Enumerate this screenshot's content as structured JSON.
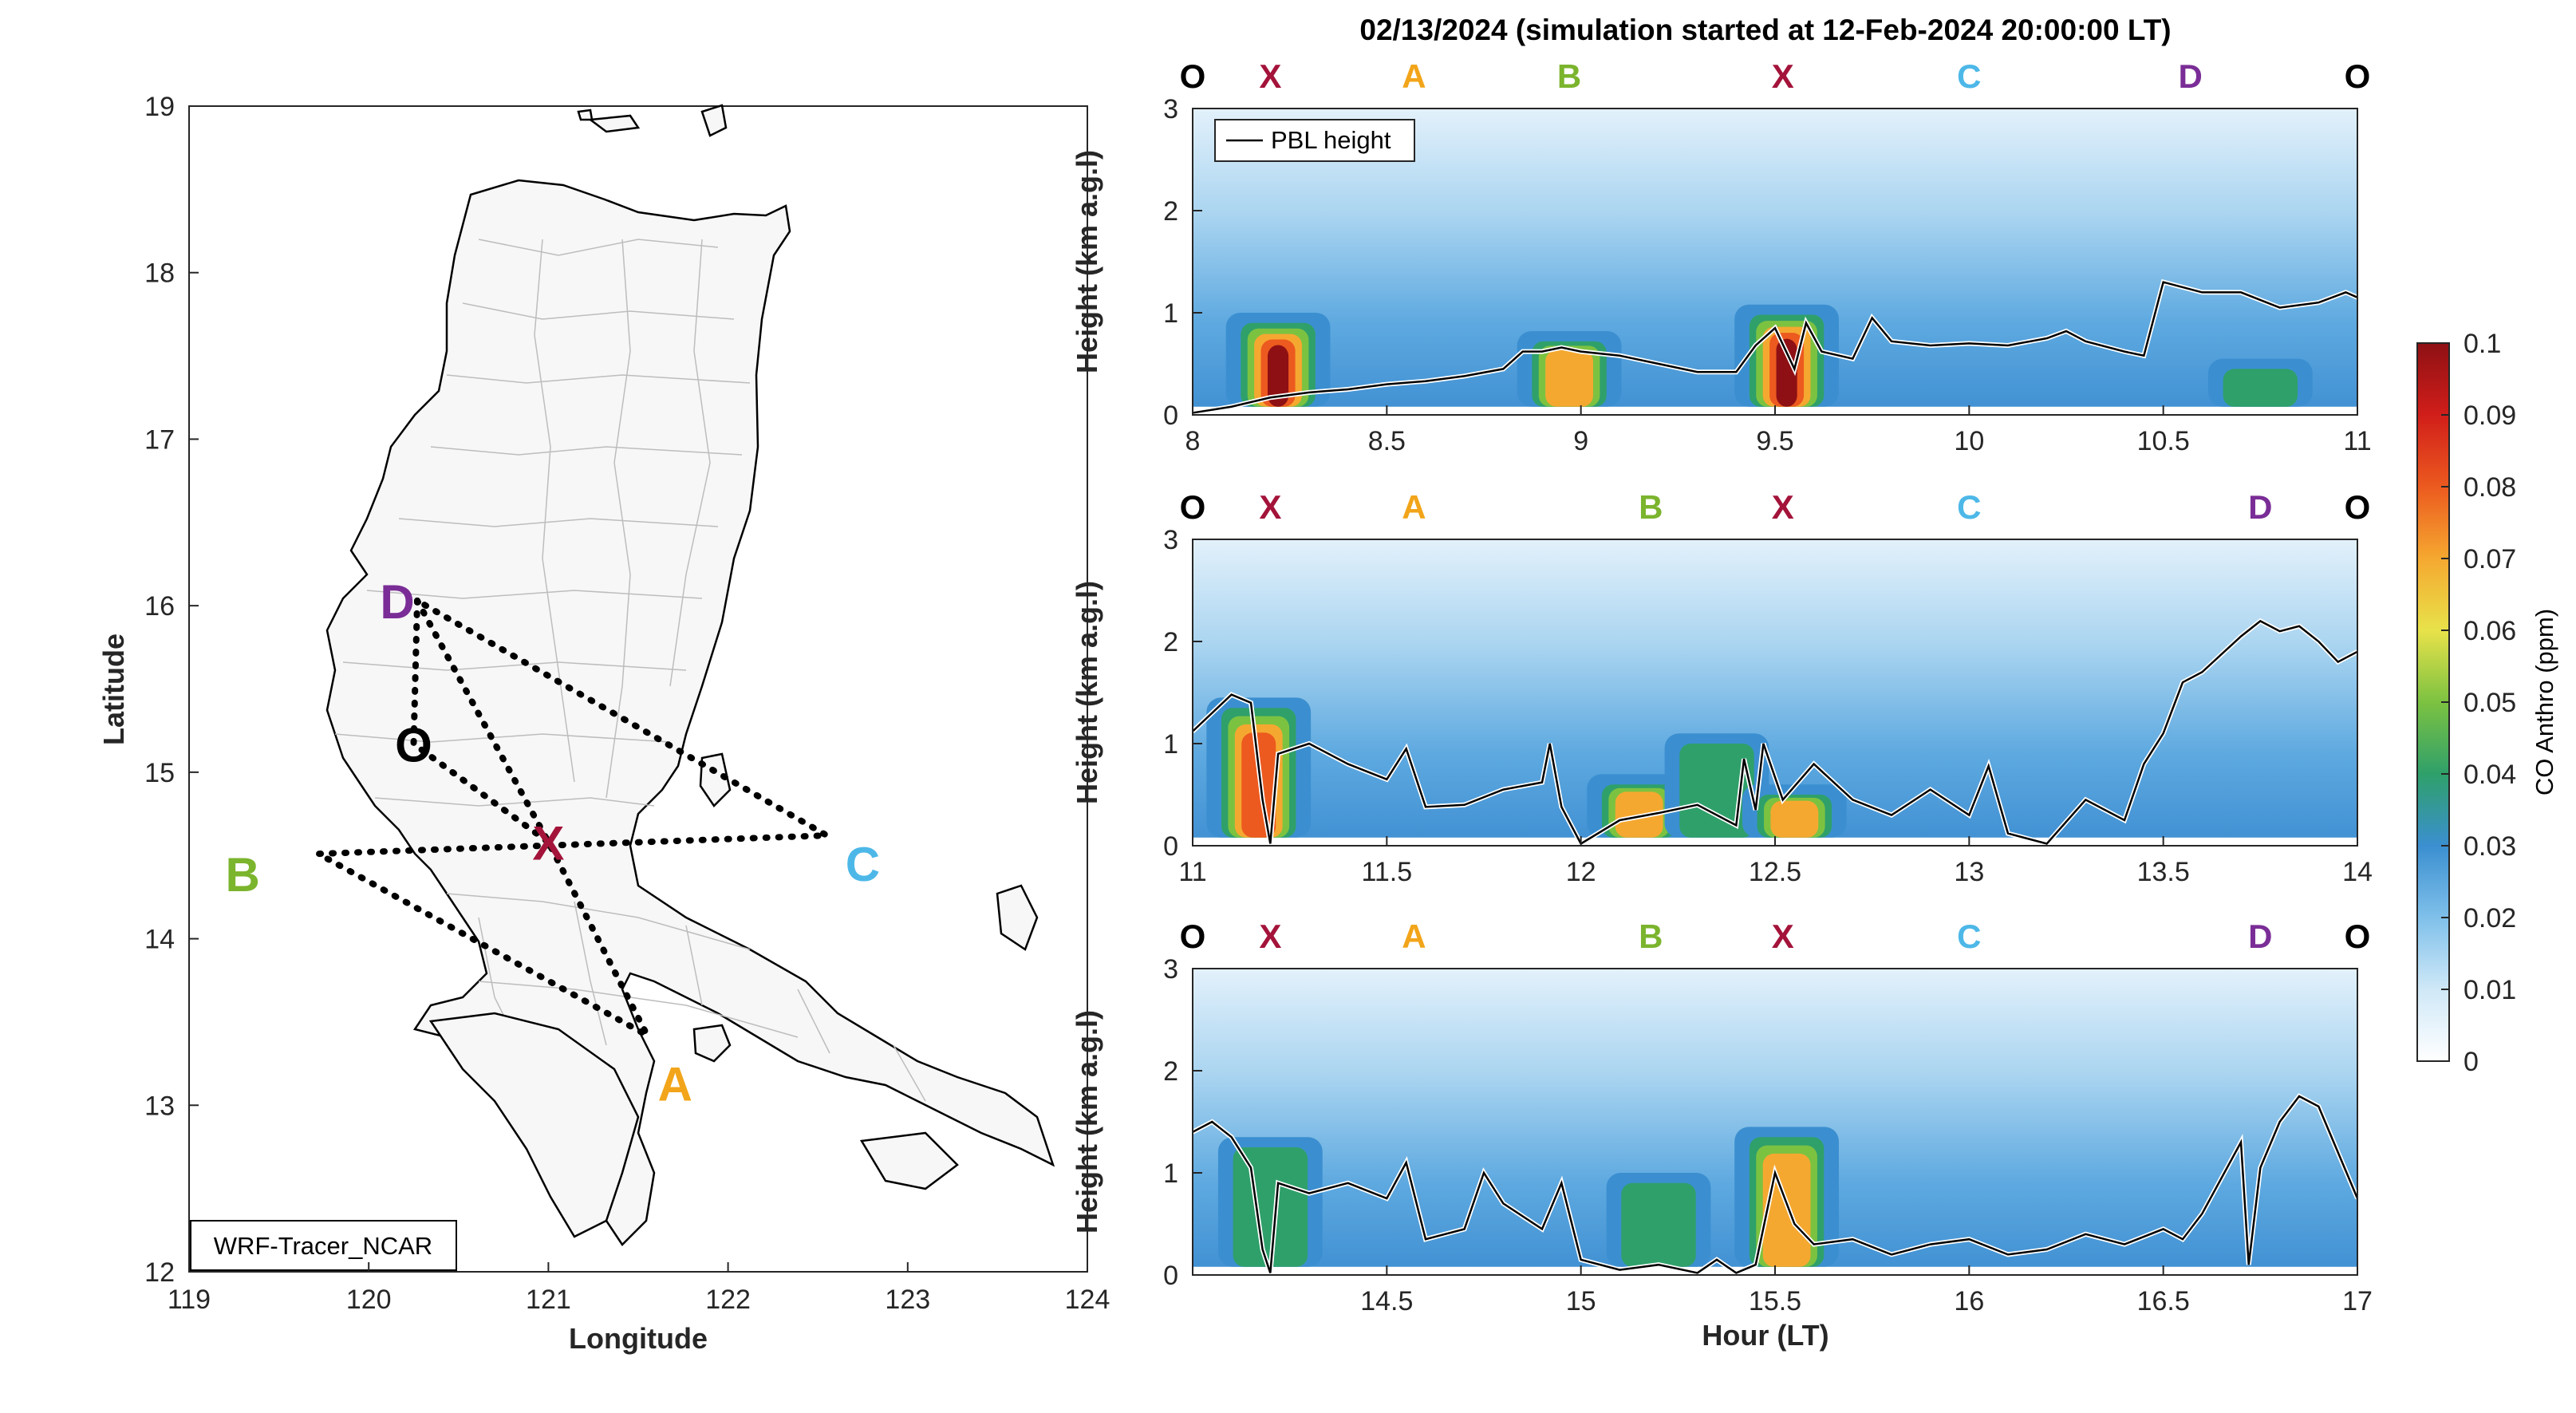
{
  "title": "02/13/2024 (simulation started at 12-Feb-2024 20:00:00 LT)",
  "colors": {
    "O": "#000000",
    "X": "#a3133a",
    "A": "#f2a51a",
    "B": "#7bb42d",
    "C": "#4db8e8",
    "D": "#7a2d96",
    "route": "#000000",
    "pbl": "#000000"
  },
  "map": {
    "xlabel": "Longitude",
    "ylabel": "Latitude",
    "xticks": [
      "119",
      "120",
      "121",
      "122",
      "123",
      "124"
    ],
    "yticks": [
      "12",
      "13",
      "14",
      "15",
      "16",
      "17",
      "18",
      "19"
    ],
    "xlim": [
      119,
      124
    ],
    "ylim": [
      12,
      19
    ],
    "model_label": "WRF-Tracer_NCAR",
    "points": [
      {
        "name": "O",
        "lon": 120.25,
        "lat": 15.17
      },
      {
        "name": "X",
        "lon": 121.0,
        "lat": 14.58
      },
      {
        "name": "A",
        "lon": 121.55,
        "lat": 13.42
      },
      {
        "name": "B",
        "lon": 119.72,
        "lat": 14.51
      },
      {
        "name": "C",
        "lon": 122.55,
        "lat": 14.62
      },
      {
        "name": "D",
        "lon": 120.27,
        "lat": 16.03
      }
    ],
    "route": [
      "D",
      "X",
      "A",
      "B",
      "C",
      "D"
    ]
  },
  "sequence": [
    "O",
    "X",
    "A",
    "B",
    "X",
    "C",
    "D",
    "O"
  ],
  "chart_data": {
    "type": "heatmap",
    "colorbar": {
      "label": "CO Anthro (ppm)",
      "ticks": [
        "0",
        "0.01",
        "0.02",
        "0.03",
        "0.04",
        "0.05",
        "0.06",
        "0.07",
        "0.08",
        "0.09",
        "0.1"
      ],
      "range": [
        0,
        0.1
      ]
    },
    "legend": "PBL height",
    "xlabel": "Hour (LT)",
    "ylabel": "Height (km a.g.l)",
    "panels": [
      {
        "xlim": [
          8,
          11
        ],
        "ylim": [
          0,
          3
        ],
        "xticks": [
          "8",
          "8.5",
          "9",
          "9.5",
          "10",
          "10.5",
          "11"
        ],
        "yticks": [
          "0",
          "1",
          "2",
          "3"
        ],
        "sequence_hours": [
          8.0,
          8.2,
          8.57,
          8.97,
          9.52,
          10.0,
          10.57,
          11.0
        ],
        "pbl_height": [
          [
            8.0,
            0.02
          ],
          [
            8.1,
            0.08
          ],
          [
            8.2,
            0.17
          ],
          [
            8.3,
            0.22
          ],
          [
            8.4,
            0.25
          ],
          [
            8.5,
            0.3
          ],
          [
            8.6,
            0.33
          ],
          [
            8.7,
            0.38
          ],
          [
            8.8,
            0.45
          ],
          [
            8.85,
            0.62
          ],
          [
            8.9,
            0.62
          ],
          [
            8.95,
            0.66
          ],
          [
            9.0,
            0.62
          ],
          [
            9.1,
            0.58
          ],
          [
            9.2,
            0.5
          ],
          [
            9.3,
            0.42
          ],
          [
            9.4,
            0.42
          ],
          [
            9.45,
            0.68
          ],
          [
            9.5,
            0.85
          ],
          [
            9.55,
            0.45
          ],
          [
            9.58,
            0.9
          ],
          [
            9.62,
            0.62
          ],
          [
            9.7,
            0.55
          ],
          [
            9.75,
            0.95
          ],
          [
            9.8,
            0.72
          ],
          [
            9.9,
            0.68
          ],
          [
            10.0,
            0.7
          ],
          [
            10.1,
            0.68
          ],
          [
            10.2,
            0.75
          ],
          [
            10.25,
            0.82
          ],
          [
            10.3,
            0.72
          ],
          [
            10.4,
            0.62
          ],
          [
            10.45,
            0.58
          ],
          [
            10.5,
            1.3
          ],
          [
            10.6,
            1.2
          ],
          [
            10.7,
            1.2
          ],
          [
            10.8,
            1.05
          ],
          [
            10.9,
            1.1
          ],
          [
            10.97,
            1.2
          ],
          [
            11.0,
            1.15
          ]
        ],
        "co_plumes": [
          {
            "hour": 8.22,
            "top_km": 0.9,
            "peak_ppm": 0.1
          },
          {
            "hour": 8.97,
            "top_km": 0.72,
            "peak_ppm": 0.07
          },
          {
            "hour": 9.53,
            "top_km": 0.98,
            "peak_ppm": 0.1
          },
          {
            "hour": 10.75,
            "top_km": 0.45,
            "peak_ppm": 0.04
          }
        ]
      },
      {
        "xlim": [
          11,
          14
        ],
        "ylim": [
          0,
          3
        ],
        "xticks": [
          "11",
          "11.5",
          "12",
          "12.5",
          "13",
          "13.5",
          "14"
        ],
        "yticks": [
          "0",
          "1",
          "2",
          "3"
        ],
        "sequence_hours": [
          11.0,
          11.2,
          11.57,
          12.18,
          12.52,
          13.0,
          13.75,
          14.0
        ],
        "pbl_height": [
          [
            11.0,
            1.12
          ],
          [
            11.05,
            1.3
          ],
          [
            11.1,
            1.48
          ],
          [
            11.15,
            1.4
          ],
          [
            11.18,
            0.45
          ],
          [
            11.2,
            0.02
          ],
          [
            11.22,
            0.9
          ],
          [
            11.3,
            1.0
          ],
          [
            11.4,
            0.8
          ],
          [
            11.5,
            0.65
          ],
          [
            11.55,
            0.95
          ],
          [
            11.6,
            0.38
          ],
          [
            11.7,
            0.4
          ],
          [
            11.8,
            0.55
          ],
          [
            11.9,
            0.62
          ],
          [
            11.92,
            1.0
          ],
          [
            11.95,
            0.38
          ],
          [
            12.0,
            0.02
          ],
          [
            12.1,
            0.25
          ],
          [
            12.2,
            0.32
          ],
          [
            12.3,
            0.4
          ],
          [
            12.4,
            0.2
          ],
          [
            12.42,
            0.85
          ],
          [
            12.45,
            0.35
          ],
          [
            12.47,
            1.0
          ],
          [
            12.52,
            0.45
          ],
          [
            12.6,
            0.8
          ],
          [
            12.7,
            0.45
          ],
          [
            12.8,
            0.3
          ],
          [
            12.9,
            0.55
          ],
          [
            13.0,
            0.3
          ],
          [
            13.05,
            0.78
          ],
          [
            13.1,
            0.12
          ],
          [
            13.2,
            0.02
          ],
          [
            13.3,
            0.45
          ],
          [
            13.4,
            0.25
          ],
          [
            13.45,
            0.8
          ],
          [
            13.5,
            1.1
          ],
          [
            13.55,
            1.6
          ],
          [
            13.6,
            1.7
          ],
          [
            13.7,
            2.05
          ],
          [
            13.75,
            2.2
          ],
          [
            13.8,
            2.1
          ],
          [
            13.85,
            2.15
          ],
          [
            13.9,
            2.0
          ],
          [
            13.95,
            1.8
          ],
          [
            14.0,
            1.9
          ]
        ],
        "co_plumes": [
          {
            "hour": 11.17,
            "top_km": 1.35,
            "peak_ppm": 0.09
          },
          {
            "hour": 12.15,
            "top_km": 0.6,
            "peak_ppm": 0.08
          },
          {
            "hour": 12.35,
            "top_km": 1.0,
            "peak_ppm": 0.05
          },
          {
            "hour": 12.55,
            "top_km": 0.5,
            "peak_ppm": 0.08
          }
        ]
      },
      {
        "xlim": [
          14,
          17
        ],
        "ylim": [
          0,
          3
        ],
        "xticks": [
          "14.5",
          "15",
          "15.5",
          "16",
          "16.5",
          "17"
        ],
        "yticks": [
          "0",
          "1",
          "2",
          "3"
        ],
        "sequence_hours": [
          14.0,
          14.2,
          14.57,
          15.18,
          15.52,
          16.0,
          16.75,
          17.0
        ],
        "pbl_height": [
          [
            14.0,
            1.4
          ],
          [
            14.05,
            1.5
          ],
          [
            14.1,
            1.35
          ],
          [
            14.15,
            1.05
          ],
          [
            14.18,
            0.25
          ],
          [
            14.2,
            0.02
          ],
          [
            14.22,
            0.9
          ],
          [
            14.3,
            0.8
          ],
          [
            14.4,
            0.9
          ],
          [
            14.5,
            0.75
          ],
          [
            14.55,
            1.1
          ],
          [
            14.6,
            0.35
          ],
          [
            14.7,
            0.45
          ],
          [
            14.75,
            1.0
          ],
          [
            14.8,
            0.7
          ],
          [
            14.9,
            0.45
          ],
          [
            14.95,
            0.9
          ],
          [
            15.0,
            0.15
          ],
          [
            15.1,
            0.05
          ],
          [
            15.2,
            0.1
          ],
          [
            15.3,
            0.02
          ],
          [
            15.35,
            0.15
          ],
          [
            15.4,
            0.02
          ],
          [
            15.45,
            0.1
          ],
          [
            15.5,
            1.0
          ],
          [
            15.55,
            0.5
          ],
          [
            15.6,
            0.3
          ],
          [
            15.7,
            0.35
          ],
          [
            15.8,
            0.2
          ],
          [
            15.9,
            0.3
          ],
          [
            16.0,
            0.35
          ],
          [
            16.1,
            0.2
          ],
          [
            16.2,
            0.25
          ],
          [
            16.3,
            0.4
          ],
          [
            16.4,
            0.3
          ],
          [
            16.5,
            0.45
          ],
          [
            16.55,
            0.35
          ],
          [
            16.6,
            0.6
          ],
          [
            16.7,
            1.3
          ],
          [
            16.72,
            0.1
          ],
          [
            16.75,
            1.05
          ],
          [
            16.8,
            1.5
          ],
          [
            16.85,
            1.75
          ],
          [
            16.9,
            1.65
          ],
          [
            16.95,
            1.2
          ],
          [
            17.0,
            0.75
          ]
        ],
        "co_plumes": [
          {
            "hour": 14.2,
            "top_km": 1.25,
            "peak_ppm": 0.05
          },
          {
            "hour": 15.2,
            "top_km": 0.9,
            "peak_ppm": 0.04
          },
          {
            "hour": 15.53,
            "top_km": 1.35,
            "peak_ppm": 0.08
          }
        ]
      }
    ]
  }
}
